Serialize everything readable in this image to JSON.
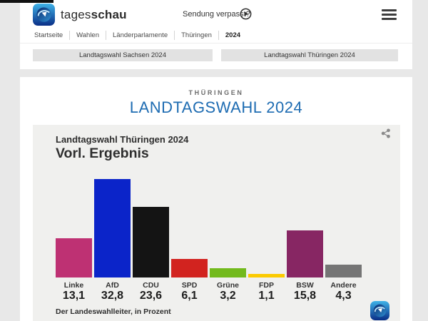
{
  "header": {
    "brand_regular": "tages",
    "brand_bold": "schau",
    "missed_show_label": "Sendung verpasst?",
    "breadcrumb": [
      "Startseite",
      "Wahlen",
      "Länderparlamente",
      "Thüringen",
      "2024"
    ],
    "buttons": [
      "Landtagswahl Sachsen 2024",
      "Landtagswahl Thüringen 2024"
    ]
  },
  "main": {
    "kicker": "THÜRINGEN",
    "title": "LANDTAGSWAHL 2024",
    "title_color": "#1e6cb2"
  },
  "chart_data": {
    "type": "bar",
    "title": "Landtagswahl Thüringen 2024",
    "subtitle": "Vorl. Ergebnis",
    "source": "Der Landeswahlleiter, in Prozent",
    "categories": [
      "Linke",
      "AfD",
      "CDU",
      "SPD",
      "Grüne",
      "FDP",
      "BSW",
      "Andere"
    ],
    "values": [
      13.1,
      32.8,
      23.6,
      6.1,
      3.2,
      1.1,
      15.8,
      4.3
    ],
    "value_labels": [
      "13,1",
      "32,8",
      "23,6",
      "6,1",
      "3,2",
      "1,1",
      "15,8",
      "4,3"
    ],
    "colors": [
      "#be3173",
      "#0b24c9",
      "#141414",
      "#d2231f",
      "#72ba1c",
      "#fbca00",
      "#872663",
      "#757575"
    ],
    "ylim": [
      0,
      35
    ],
    "unit": "Prozent",
    "background": "#f0f0ee",
    "legend": "none",
    "grid": false
  }
}
